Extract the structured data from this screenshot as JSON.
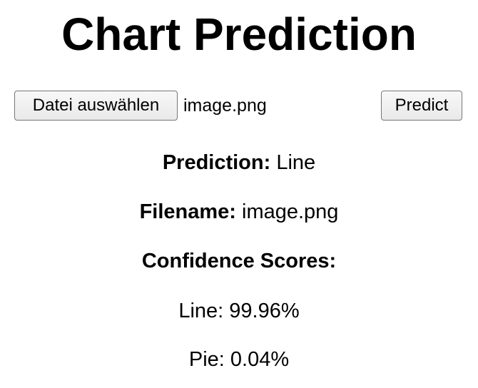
{
  "page": {
    "title": "Chart Prediction"
  },
  "upload": {
    "file_button_label": "Datei auswählen",
    "file_name": "image.png",
    "predict_button_label": "Predict"
  },
  "result": {
    "prediction_label": "Prediction:",
    "prediction_value": "Line",
    "filename_label": "Filename:",
    "filename_value": "image.png",
    "confidence_heading": "Confidence Scores:",
    "scores": [
      {
        "label": "Line",
        "value": "99.96%"
      },
      {
        "label": "Pie",
        "value": "0.04%"
      }
    ]
  }
}
